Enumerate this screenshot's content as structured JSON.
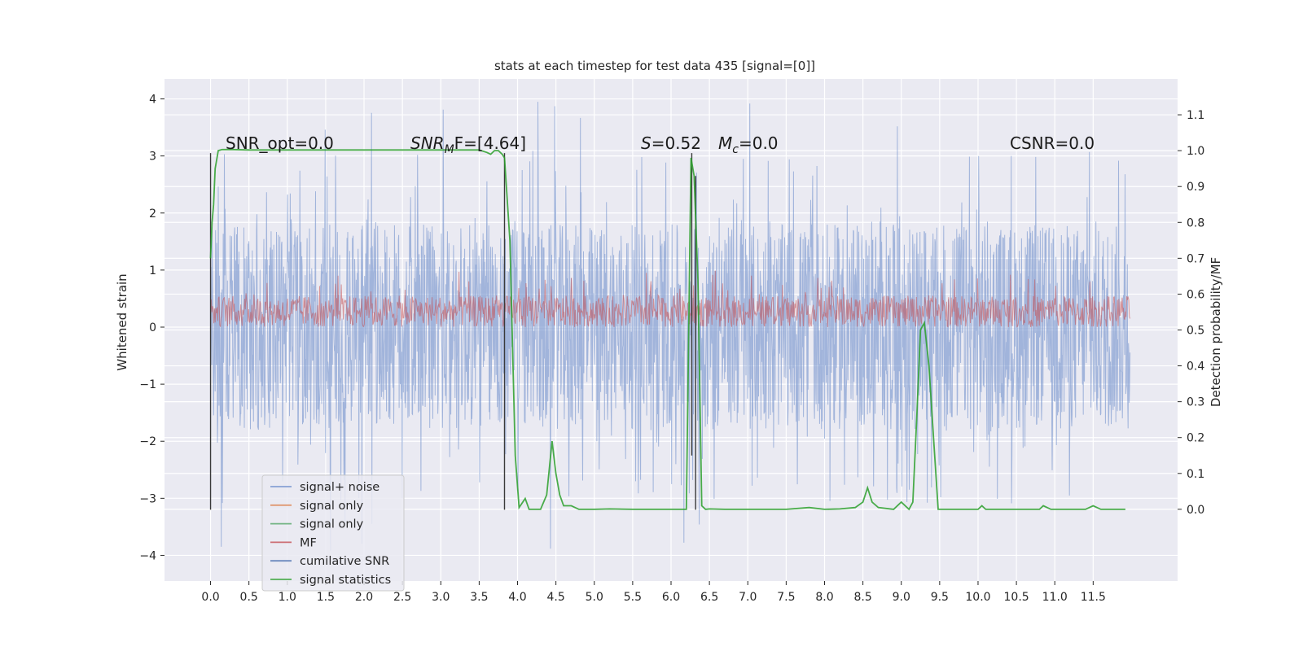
{
  "chart_data": {
    "type": "line",
    "title": "stats at each timestep for test data 435 [signal=[0]]",
    "ylabel": "Whitened strain",
    "y2label": "Detection probability/MF",
    "xlim": [
      -0.6,
      12.6
    ],
    "ylim": [
      -4.45,
      4.35
    ],
    "y2lim": [
      -0.2,
      1.2
    ],
    "xticks": [
      0.0,
      0.5,
      1.0,
      1.5,
      2.0,
      2.5,
      3.0,
      3.5,
      4.0,
      4.5,
      5.0,
      5.5,
      6.0,
      6.5,
      7.0,
      7.5,
      8.0,
      8.5,
      9.0,
      9.5,
      10.0,
      10.5,
      11.0,
      11.5
    ],
    "xtick_labels": [
      "0.0",
      "0.5",
      "1.0",
      "1.5",
      "2.0",
      "2.5",
      "3.0",
      "3.5",
      "4.0",
      "4.5",
      "5.0",
      "5.5",
      "6.0",
      "6.5",
      "7.0",
      "7.5",
      "8.0",
      "8.5",
      "9.0",
      "9.5",
      "10.0",
      "10.5",
      "11.0",
      "11.5"
    ],
    "yticks": [
      -4,
      -3,
      -2,
      -1,
      0,
      1,
      2,
      3,
      4
    ],
    "ytick_labels": [
      "−4",
      "−3",
      "−2",
      "−1",
      "0",
      "1",
      "2",
      "3",
      "4"
    ],
    "y2ticks": [
      0.0,
      0.1,
      0.2,
      0.3,
      0.4,
      0.5,
      0.6,
      0.7,
      0.8,
      0.9,
      1.0,
      1.1
    ],
    "y2tick_labels": [
      "0.0",
      "0.1",
      "0.2",
      "0.3",
      "0.4",
      "0.5",
      "0.6",
      "0.7",
      "0.8",
      "0.9",
      "1.0",
      "1.1"
    ],
    "grid": true,
    "legend_position": "lower-left",
    "legend": [
      {
        "label": "signal+ noise",
        "color": "#6f8fcc"
      },
      {
        "label": "signal only",
        "color": "#dd8452"
      },
      {
        "label": "signal only",
        "color": "#55a868"
      },
      {
        "label": "MF",
        "color": "#c44e52"
      },
      {
        "label": "cumilative SNR",
        "color": "#4c72b0"
      },
      {
        "label": "signal statistics",
        "color": "#2ca02c"
      }
    ],
    "annotations": {
      "snr_opt": "SNR_opt=0.0",
      "snr_mf_pre": "SNR",
      "snr_mf_sub": "M",
      "snr_mf_post": "F=[4.64]",
      "s_var": "S",
      "s_val": "=0.52",
      "mc_var": "M",
      "mc_sub": "c",
      "mc_val": "=0.0",
      "csnr": "CSNR=0.0"
    },
    "noise": {
      "x_range": [
        0.0,
        11.98
      ],
      "typical_envelope": [
        -1.8,
        1.8
      ],
      "spike_range": [
        -4.0,
        3.95
      ]
    },
    "mf_series": {
      "x_range": [
        0.0,
        11.98
      ],
      "band": [
        0.0,
        0.55
      ],
      "spike_max": 1.0
    },
    "vlines": [
      {
        "x": 0.0,
        "y_range": [
          -3.2,
          3.05
        ]
      },
      {
        "x": 3.83,
        "y_range": [
          -3.2,
          3.05
        ]
      },
      {
        "x": 6.27,
        "y_range": [
          -2.25,
          3.05
        ]
      },
      {
        "x": 6.32,
        "y_range": [
          -3.2,
          2.65
        ]
      }
    ],
    "series": [
      {
        "name": "signal statistics",
        "axis": "right",
        "x": [
          0.0,
          0.02,
          0.04,
          0.06,
          0.1,
          0.15,
          0.2,
          0.3,
          0.5,
          1.0,
          1.5,
          2.0,
          2.5,
          3.0,
          3.5,
          3.6,
          3.65,
          3.7,
          3.75,
          3.8,
          3.83,
          3.9,
          3.97,
          4.02,
          4.1,
          4.15,
          4.2,
          4.3,
          4.38,
          4.45,
          4.5,
          4.55,
          4.6,
          4.7,
          4.8,
          5.0,
          5.2,
          5.5,
          6.0,
          6.2,
          6.26,
          6.3,
          6.35,
          6.4,
          6.45,
          6.5,
          6.7,
          7.0,
          7.5,
          7.8,
          8.0,
          8.2,
          8.4,
          8.5,
          8.56,
          8.62,
          8.7,
          8.9,
          9.0,
          9.1,
          9.15,
          9.2,
          9.25,
          9.3,
          9.36,
          9.42,
          9.48,
          9.55,
          9.7,
          10.0,
          10.05,
          10.1,
          10.2,
          10.5,
          10.8,
          10.85,
          10.95,
          11.2,
          11.4,
          11.5,
          11.6,
          11.8,
          11.92
        ],
        "y": [
          0.7,
          0.8,
          0.85,
          0.95,
          1.0,
          1.003,
          1.003,
          1.003,
          1.002,
          1.002,
          1.002,
          1.002,
          1.002,
          1.002,
          1.002,
          0.995,
          0.99,
          1.0,
          1.0,
          0.99,
          0.98,
          0.75,
          0.15,
          0.005,
          0.03,
          0.0,
          0.0,
          0.0,
          0.04,
          0.19,
          0.1,
          0.04,
          0.01,
          0.01,
          0.0,
          0.0,
          0.001,
          0.0,
          0.0,
          0.0,
          0.98,
          0.93,
          0.64,
          0.01,
          0.0,
          0.001,
          0.0,
          0.0,
          0.0,
          0.005,
          0.0,
          0.001,
          0.005,
          0.02,
          0.06,
          0.02,
          0.005,
          0.0,
          0.02,
          0.0,
          0.02,
          0.25,
          0.5,
          0.52,
          0.4,
          0.2,
          0.0,
          0.0,
          0.0,
          0.0,
          0.01,
          0.0,
          0.0,
          0.0,
          0.0,
          0.01,
          0.0,
          0.0,
          0.0,
          0.01,
          0.0,
          0.0,
          0.0
        ]
      }
    ]
  }
}
